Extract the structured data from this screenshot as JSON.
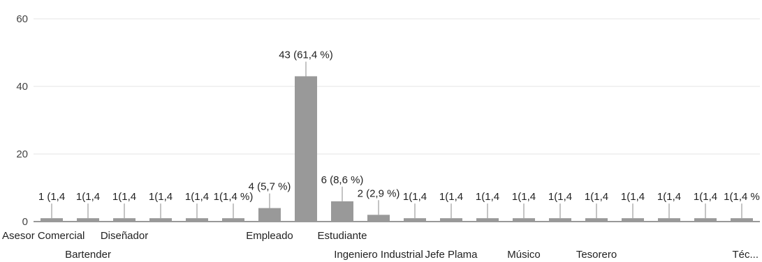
{
  "chart_data": {
    "type": "bar",
    "categories": [
      "Asesor Comercial",
      "Bartender",
      "Diseñador",
      "",
      "",
      "",
      "Empleado",
      "",
      "Estudiante",
      "Ingeniero Industrial",
      "",
      "Jefe Plama",
      "",
      "Músico",
      "",
      "Tesorero",
      "",
      "",
      "",
      "Téc..."
    ],
    "values": [
      1,
      1,
      1,
      1,
      1,
      1,
      4,
      43,
      6,
      2,
      1,
      1,
      1,
      1,
      1,
      1,
      1,
      1,
      1,
      1
    ],
    "data_labels": [
      "1 (1,4",
      "1(1,4",
      "1(1,4",
      "1(1,4",
      "1(1,4",
      "1(1,4 %)",
      "4 (5,7 %)",
      "43 (61,4 %)",
      "6 (8,6 %)",
      "2 (2,9 %)",
      "1(1,4",
      "1(1,4",
      "1(1,4",
      "1(1,4",
      "1(1,4",
      "1(1,4",
      "1(1,4",
      "1(1,4",
      "1(1,4",
      "1(1,4 %"
    ],
    "y_ticks": [
      "0",
      "20",
      "40",
      "60"
    ],
    "ylim": [
      0,
      60
    ],
    "grid": true,
    "bar_color": "#999999",
    "grid_color": "#e5e5e5",
    "title": "",
    "xlabel": "",
    "ylabel": ""
  }
}
